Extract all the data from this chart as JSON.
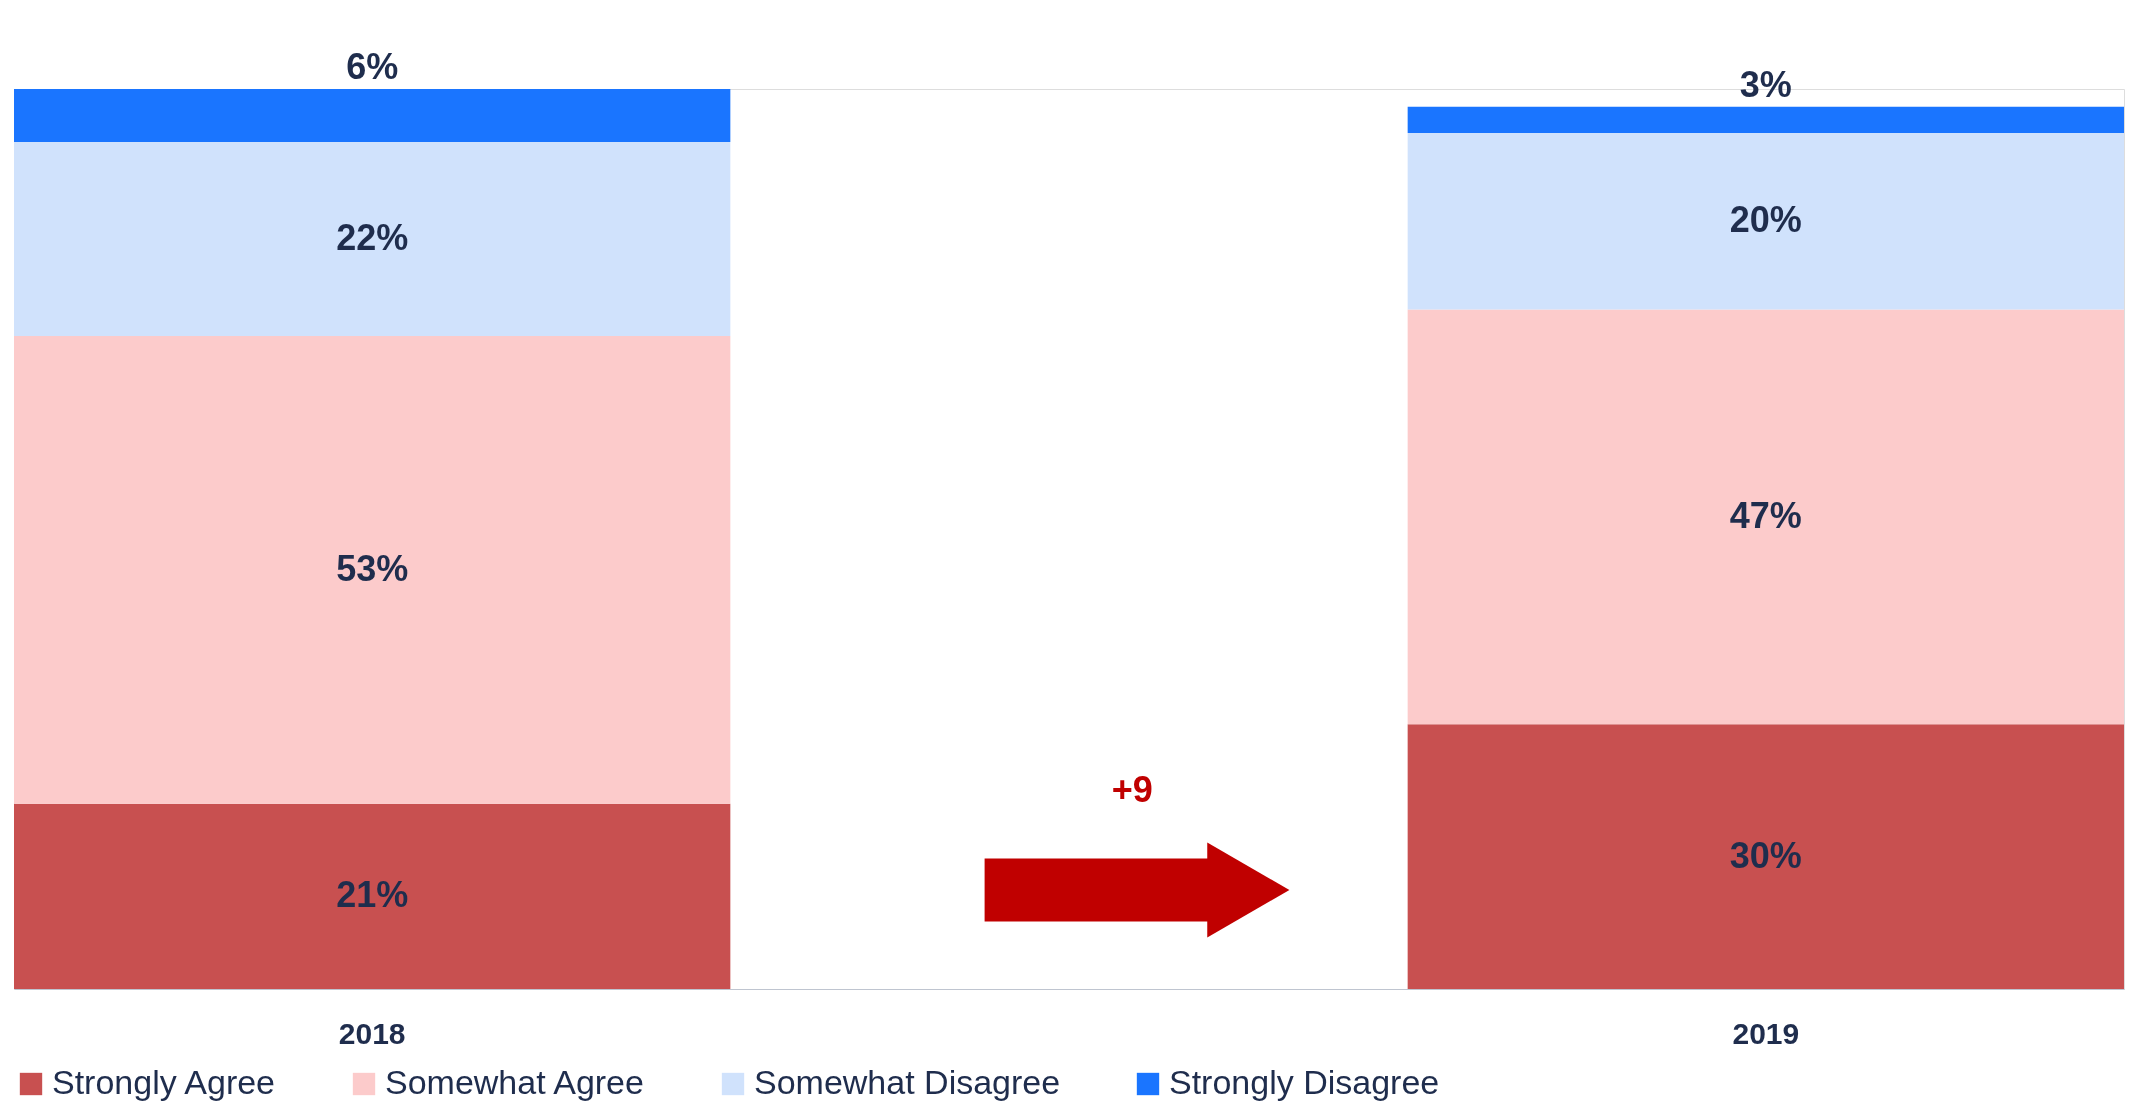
{
  "chart_data": {
    "type": "bar",
    "stacked": true,
    "categories": [
      "2018",
      "2019"
    ],
    "series": [
      {
        "name": "Strongly Agree",
        "color": "#c85050",
        "values": [
          21,
          30
        ],
        "value_labels": [
          "21%",
          "30%"
        ]
      },
      {
        "name": "Somewhat Agree",
        "color": "#fccbcb",
        "values": [
          53,
          47
        ],
        "value_labels": [
          "53%",
          "47%"
        ]
      },
      {
        "name": "Somewhat Disagree",
        "color": "#d0e2fc",
        "values": [
          22,
          20
        ],
        "value_labels": [
          "22%",
          "20%"
        ]
      },
      {
        "name": "Strongly Disagree",
        "color": "#1a75ff",
        "values": [
          6,
          3
        ],
        "value_labels": [
          "6%",
          "3%"
        ]
      }
    ],
    "annotations": [
      "+9"
    ],
    "legend": "bottom"
  }
}
